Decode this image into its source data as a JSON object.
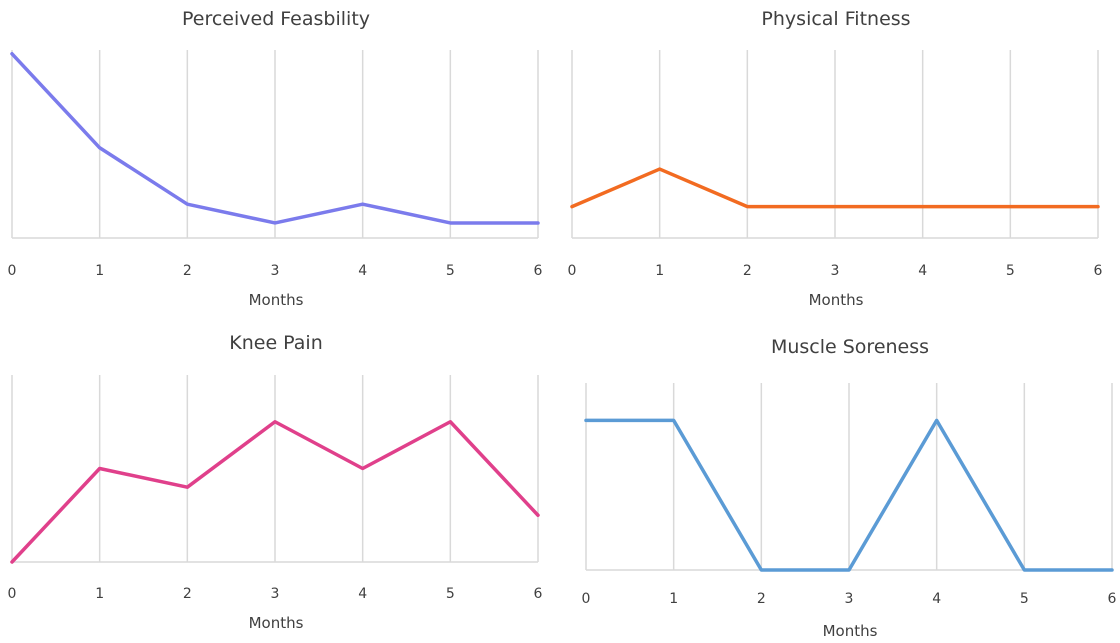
{
  "chart_data": [
    {
      "type": "line",
      "title": "Perceived Feasbility",
      "xlabel": "Months",
      "ylabel": "",
      "x": [
        0,
        1,
        2,
        3,
        4,
        5,
        6
      ],
      "series": [
        {
          "values": [
            4.9,
            2.4,
            0.9,
            0.4,
            0.9,
            0.4,
            0.4
          ]
        }
      ],
      "ylim": [
        0,
        5
      ],
      "grid": "vertical",
      "color": "#7b7bec"
    },
    {
      "type": "line",
      "title": "Physical Fitness",
      "xlabel": "Months",
      "ylabel": "",
      "x": [
        0,
        1,
        2,
        3,
        4,
        5,
        6
      ],
      "series": [
        {
          "values": [
            1,
            2.2,
            1,
            1,
            1,
            1,
            1
          ]
        }
      ],
      "ylim": [
        0,
        6
      ],
      "grid": "vertical",
      "color": "#f26b21"
    },
    {
      "type": "line",
      "title": "Knee Pain",
      "xlabel": "Months",
      "ylabel": "",
      "x": [
        0,
        1,
        2,
        3,
        4,
        5,
        6
      ],
      "series": [
        {
          "values": [
            0,
            2,
            1.6,
            3,
            2,
            3,
            1
          ]
        }
      ],
      "ylim": [
        0,
        4
      ],
      "grid": "vertical",
      "color": "#e0408b"
    },
    {
      "type": "line",
      "title": "Muscle Soreness",
      "xlabel": "Months",
      "ylabel": "",
      "x": [
        0,
        1,
        2,
        3,
        4,
        5,
        6
      ],
      "series": [
        {
          "values": [
            1,
            1,
            0,
            0,
            1,
            0,
            0
          ]
        }
      ],
      "ylim": [
        0,
        1.25
      ],
      "grid": "vertical",
      "color": "#5b9bd5"
    }
  ]
}
